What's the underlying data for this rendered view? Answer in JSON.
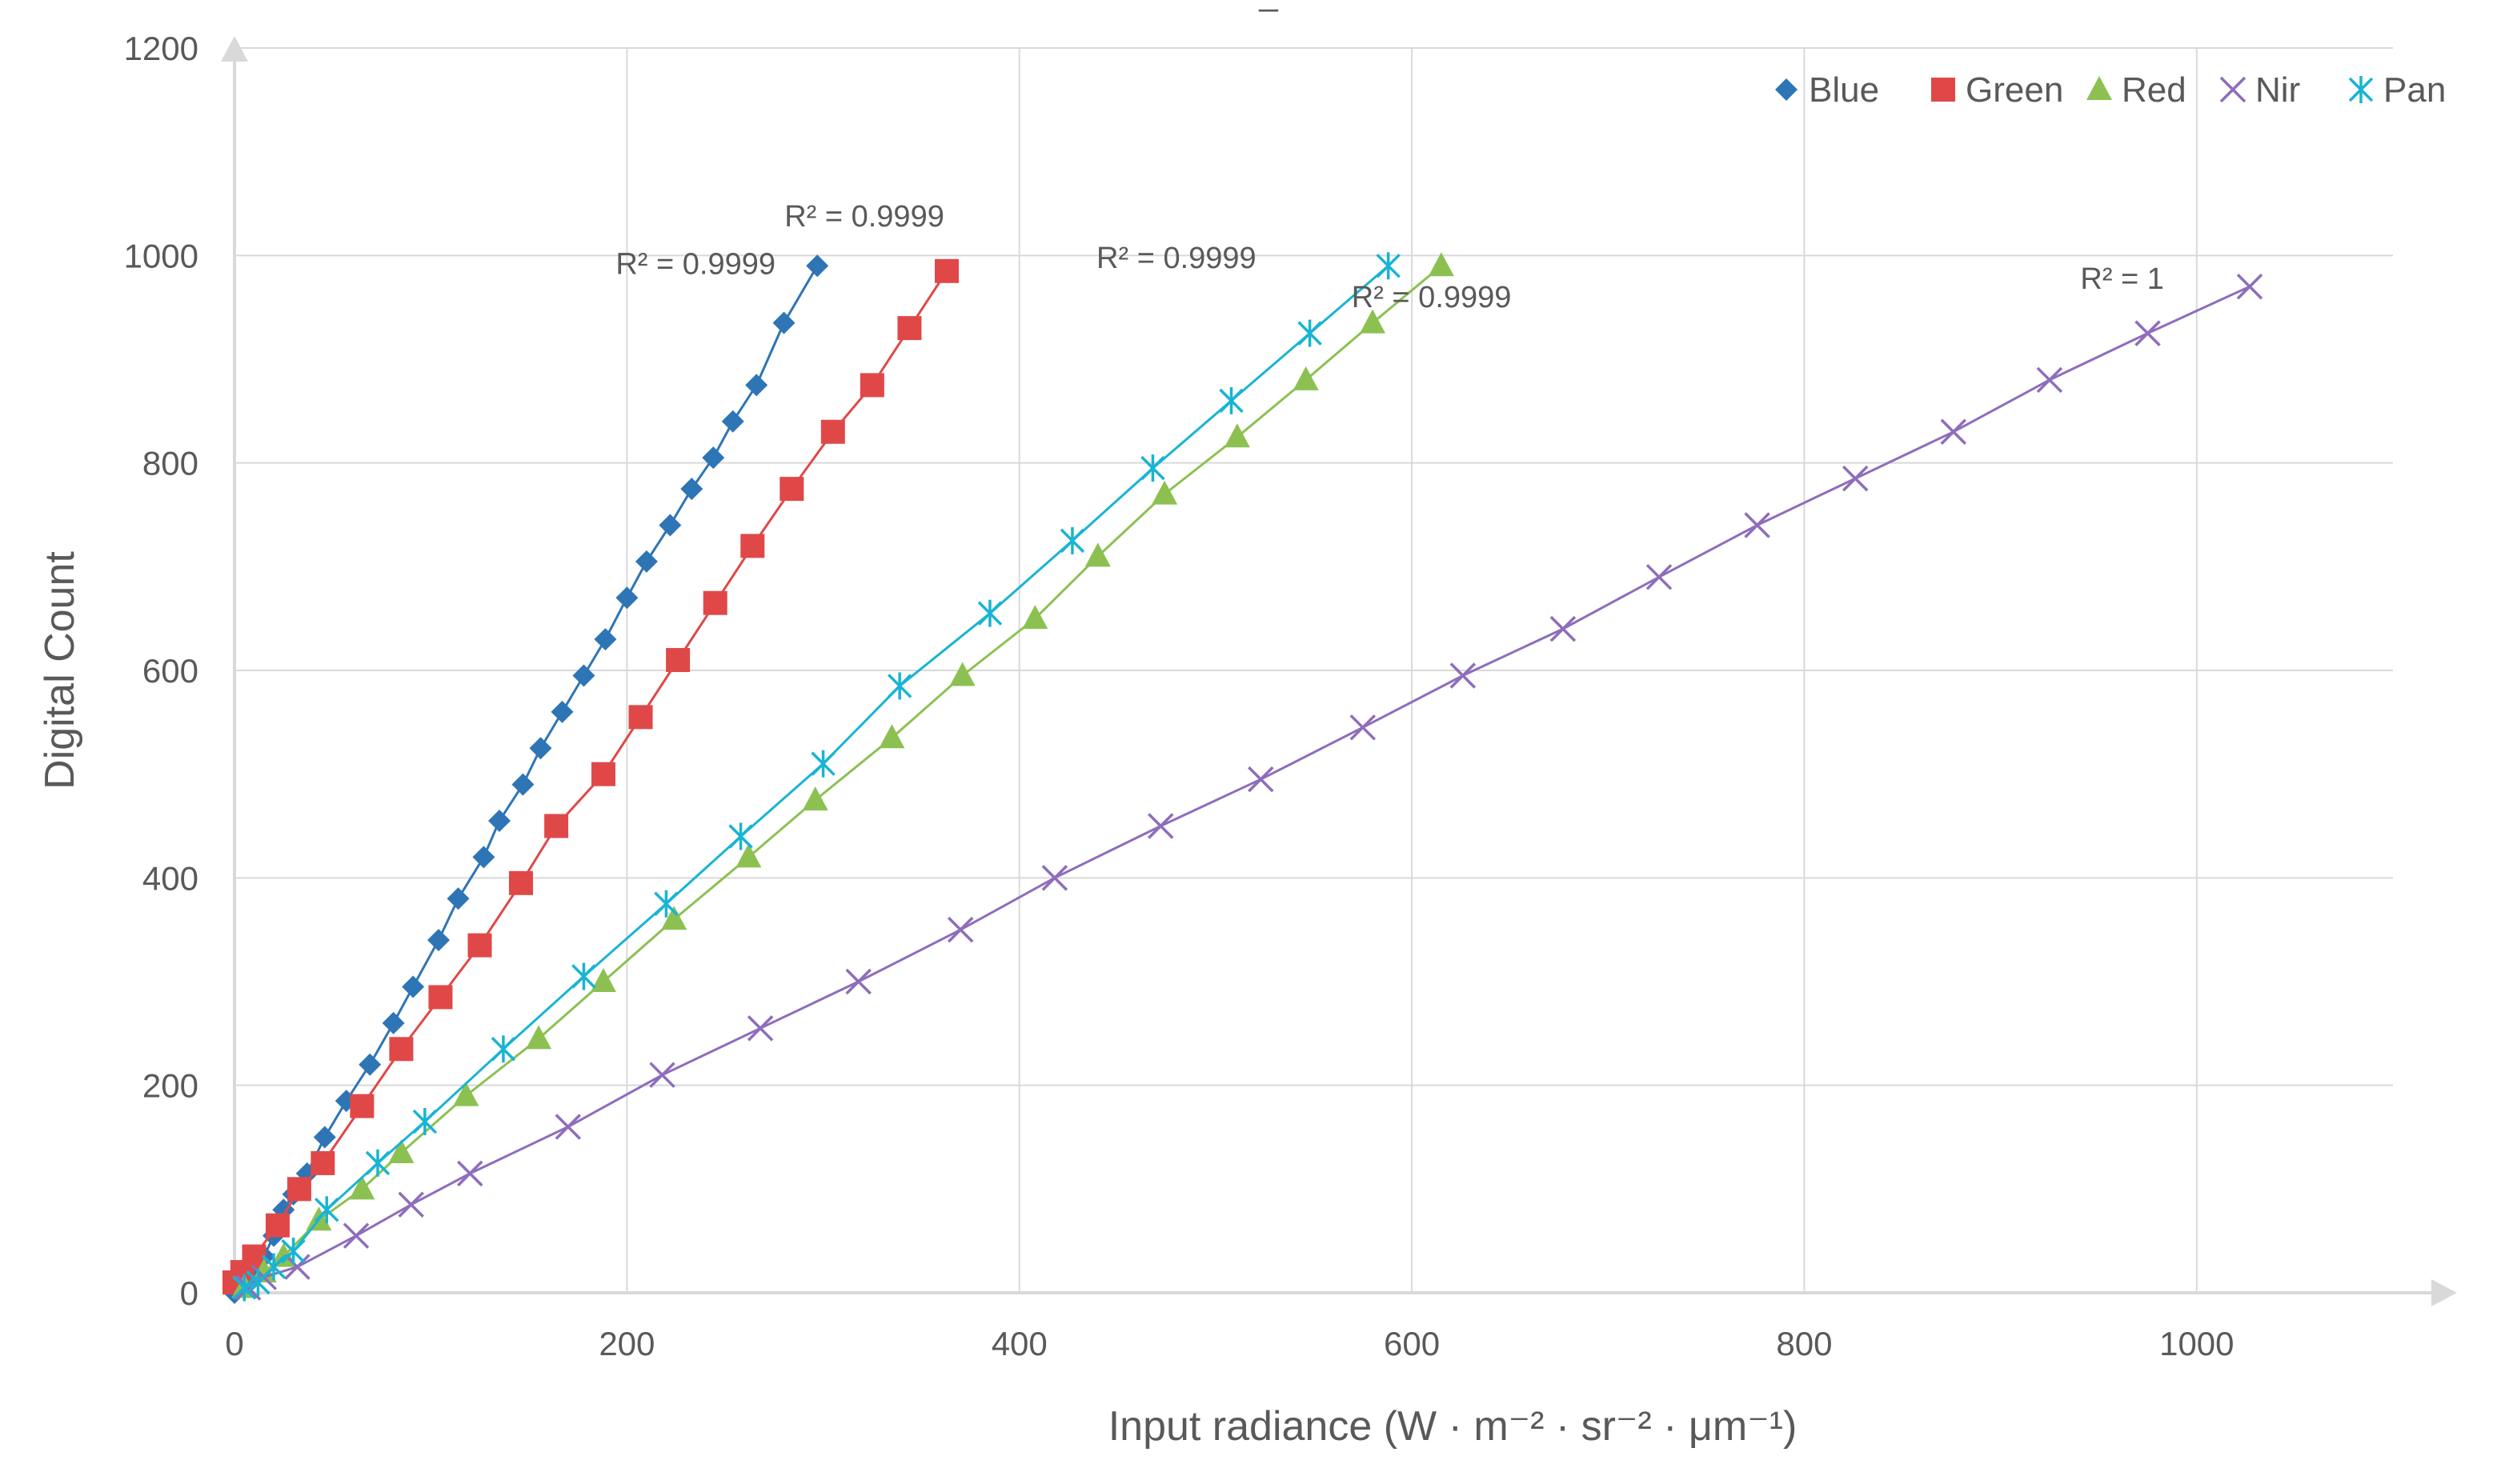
{
  "chart_data": {
    "type": "line",
    "title": "",
    "xlabel": "Input radiance (W · m⁻² · sr⁻² · μm⁻¹)",
    "ylabel": "Digital Count",
    "xlim": [
      0,
      1100
    ],
    "ylim": [
      0,
      1200
    ],
    "xticks": [
      0,
      200,
      400,
      600,
      800,
      1000
    ],
    "yticks": [
      0,
      200,
      400,
      600,
      800,
      1000,
      1200
    ],
    "grid": true,
    "legend_position": "top-right",
    "colors": {
      "Blue": "#2e75b6",
      "Green": "#e04848",
      "Red": "#8cc152",
      "Nir": "#8e6dbb",
      "Pan": "#18b4d4",
      "grid": "#d9d9d9",
      "axis": "#d9d9d9",
      "text": "#595959"
    },
    "series": [
      {
        "name": "Blue",
        "marker": "diamond",
        "x": [
          0,
          5,
          10,
          15,
          20,
          25,
          30,
          37,
          46,
          57,
          69,
          81,
          91,
          104,
          114,
          127,
          135,
          147,
          156,
          167,
          178,
          189,
          200,
          210,
          222,
          233,
          244,
          254,
          266,
          280,
          297
        ],
        "y": [
          0,
          10,
          20,
          35,
          55,
          80,
          95,
          115,
          150,
          185,
          220,
          260,
          295,
          340,
          380,
          420,
          455,
          490,
          525,
          560,
          595,
          630,
          670,
          705,
          740,
          775,
          805,
          840,
          875,
          935,
          990
        ]
      },
      {
        "name": "Green",
        "marker": "square",
        "x": [
          0,
          4,
          10,
          22,
          33,
          45,
          65,
          85,
          105,
          125,
          146,
          164,
          188,
          207,
          226,
          245,
          264,
          284,
          305,
          325,
          344,
          363
        ],
        "y": [
          10,
          20,
          35,
          65,
          100,
          125,
          180,
          235,
          285,
          335,
          395,
          450,
          500,
          555,
          610,
          665,
          720,
          775,
          830,
          875,
          930,
          985
        ]
      },
      {
        "name": "Red",
        "marker": "triangle",
        "x": [
          5,
          15,
          25,
          43,
          65,
          85,
          118,
          155,
          188,
          224,
          262,
          296,
          335,
          371,
          408,
          440,
          474,
          511,
          546,
          580,
          615
        ],
        "y": [
          5,
          20,
          35,
          70,
          100,
          135,
          190,
          245,
          300,
          360,
          420,
          475,
          535,
          595,
          650,
          710,
          770,
          825,
          880,
          935,
          990
        ]
      },
      {
        "name": "Nir",
        "marker": "x",
        "x": [
          7,
          15,
          32,
          62,
          90,
          120,
          170,
          218,
          268,
          318,
          370,
          418,
          472,
          523,
          575,
          626,
          677,
          726,
          776,
          826,
          876,
          925,
          975,
          1027
        ],
        "y": [
          5,
          15,
          25,
          55,
          85,
          115,
          160,
          210,
          255,
          300,
          350,
          400,
          450,
          495,
          545,
          595,
          640,
          690,
          740,
          785,
          830,
          880,
          925,
          970
        ]
      },
      {
        "name": "Pan",
        "marker": "asterisk",
        "x": [
          5,
          12,
          20,
          30,
          47,
          73,
          97,
          137,
          178,
          220,
          258,
          300,
          339,
          385,
          427,
          468,
          508,
          548,
          588
        ],
        "y": [
          5,
          10,
          25,
          40,
          80,
          125,
          165,
          235,
          305,
          375,
          440,
          510,
          585,
          655,
          725,
          795,
          860,
          925,
          990
        ]
      }
    ],
    "annotations": [
      {
        "text": "R² = 0.9999",
        "series": "Blue",
        "x": 235,
        "y": 982
      },
      {
        "text": "R² = 0.9999",
        "series": "Green",
        "x": 321,
        "y": 1028
      },
      {
        "text": "R² = 0.9999",
        "series": "Pan",
        "x": 480,
        "y": 988
      },
      {
        "text": "R² = 0.9999",
        "series": "Red",
        "x": 610,
        "y": 950
      },
      {
        "text": "R² = 1",
        "series": "Nir",
        "x": 962,
        "y": 968
      }
    ],
    "top_mark": "_"
  }
}
